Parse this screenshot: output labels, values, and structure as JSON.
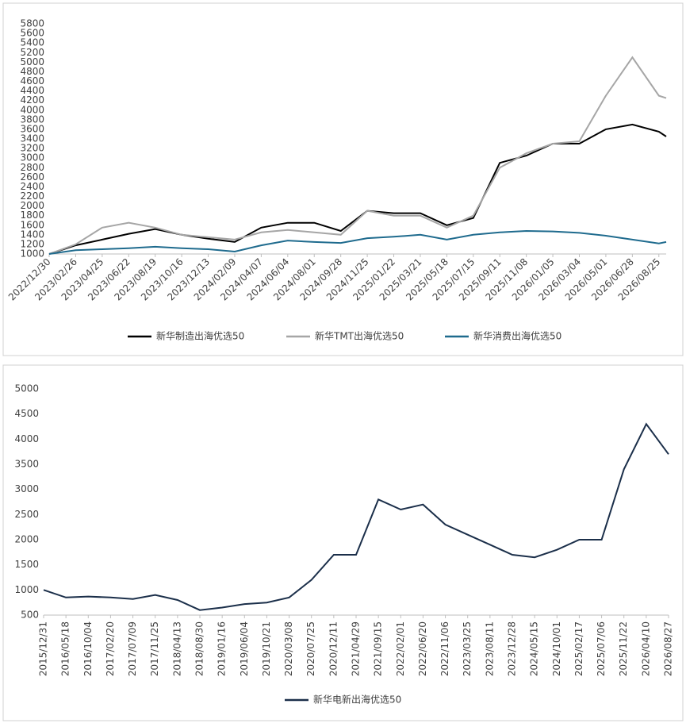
{
  "chart_data": [
    {
      "type": "line",
      "x": [
        "2022/12/30",
        "2023/02/26",
        "2023/04/25",
        "2023/06/22",
        "2023/08/19",
        "2023/10/16",
        "2023/12/13",
        "2024/02/09",
        "2024/04/07",
        "2024/06/04",
        "2024/08/01",
        "2024/09/28",
        "2024/11/25",
        "2025/01/22",
        "2025/03/21",
        "2025/05/18",
        "2025/07/15",
        "2025/09/11",
        "2025/11/08",
        "2026/01/05",
        "2026/03/04",
        "2026/05/01",
        "2026/06/28",
        "2026/08/25",
        "2026/09/10"
      ],
      "xlim": [
        "2022/12/30",
        "2026/09/10"
      ],
      "xticks": [
        "2022/12/30",
        "2023/02/26",
        "2023/04/25",
        "2023/06/22",
        "2023/08/19",
        "2023/10/16",
        "2023/12/13",
        "2024/02/09",
        "2024/04/07",
        "2024/06/04",
        "2024/08/01",
        "2024/09/28",
        "2024/11/25",
        "2025/01/22",
        "2025/03/21",
        "2025/05/18",
        "2025/07/15",
        "2025/09/11",
        "2025/11/08",
        "2026/01/05",
        "2026/03/04",
        "2026/05/01",
        "2026/06/28",
        "2026/08/25"
      ],
      "ylim": [
        1000,
        5800
      ],
      "yticks": [
        1000,
        1200,
        1400,
        1600,
        1800,
        2000,
        2200,
        2400,
        2600,
        2800,
        3000,
        3200,
        3400,
        3600,
        3800,
        4000,
        4200,
        4400,
        4600,
        4800,
        5000,
        5200,
        5400,
        5600,
        5800
      ],
      "series": [
        {
          "name": "新华制造出海优选50",
          "color": "#000000",
          "values": [
            1000,
            1180,
            1300,
            1420,
            1520,
            1400,
            1320,
            1250,
            1550,
            1650,
            1650,
            1480,
            1900,
            1850,
            1850,
            1600,
            1750,
            2900,
            3050,
            3300,
            3300,
            3600,
            3700,
            3550,
            3450
          ]
        },
        {
          "name": "新华TMT出海优选50",
          "color": "#a6a6a6",
          "values": [
            1000,
            1200,
            1550,
            1650,
            1550,
            1400,
            1350,
            1300,
            1450,
            1500,
            1450,
            1400,
            1900,
            1800,
            1800,
            1550,
            1800,
            2800,
            3100,
            3300,
            3350,
            4300,
            5100,
            4300,
            4250
          ]
        },
        {
          "name": "新华消费出海优选50",
          "color": "#1f6b8e",
          "values": [
            1000,
            1080,
            1100,
            1120,
            1150,
            1120,
            1100,
            1050,
            1180,
            1280,
            1250,
            1230,
            1330,
            1360,
            1400,
            1300,
            1400,
            1450,
            1480,
            1470,
            1440,
            1380,
            1300,
            1220,
            1250
          ]
        }
      ]
    },
    {
      "type": "line",
      "x": [
        "2015/12/31",
        "2016/05/18",
        "2016/10/04",
        "2017/02/20",
        "2017/07/09",
        "2017/11/25",
        "2018/04/13",
        "2018/08/30",
        "2019/01/16",
        "2019/06/04",
        "2019/10/21",
        "2020/03/08",
        "2020/07/25",
        "2020/12/11",
        "2021/04/29",
        "2021/09/15",
        "2022/02/01",
        "2022/06/20",
        "2022/11/06",
        "2023/03/25",
        "2023/08/11",
        "2023/12/28",
        "2024/05/15",
        "2024/10/01",
        "2025/02/17",
        "2025/07/06",
        "2025/11/22",
        "2026/04/10",
        "2026/08/27"
      ],
      "xlim": [
        "2015/12/31",
        "2026/08/27"
      ],
      "xticks": [
        "2015/12/31",
        "2016/05/18",
        "2016/10/04",
        "2017/02/20",
        "2017/07/09",
        "2017/11/25",
        "2018/04/13",
        "2018/08/30",
        "2019/01/16",
        "2019/06/04",
        "2019/10/21",
        "2020/03/08",
        "2020/07/25",
        "2020/12/11",
        "2021/04/29",
        "2021/09/15",
        "2022/02/01",
        "2022/06/20",
        "2022/11/06",
        "2023/03/25",
        "2023/08/11",
        "2023/12/28",
        "2024/05/15",
        "2024/10/01",
        "2025/02/17",
        "2025/07/06",
        "2025/11/22",
        "2026/04/10",
        "2026/08/27"
      ],
      "ylim": [
        500,
        5000
      ],
      "yticks": [
        500,
        1000,
        1500,
        2000,
        2500,
        3000,
        3500,
        4000,
        4500,
        5000
      ],
      "series": [
        {
          "name": "新华电新出海优选50",
          "color": "#1b2f4a",
          "values": [
            1000,
            850,
            870,
            850,
            820,
            900,
            800,
            600,
            650,
            720,
            750,
            850,
            1200,
            1700,
            1700,
            2800,
            2600,
            2700,
            2300,
            2100,
            1900,
            1700,
            1650,
            1800,
            2000,
            2000,
            3400,
            4300,
            3700
          ]
        }
      ]
    }
  ]
}
